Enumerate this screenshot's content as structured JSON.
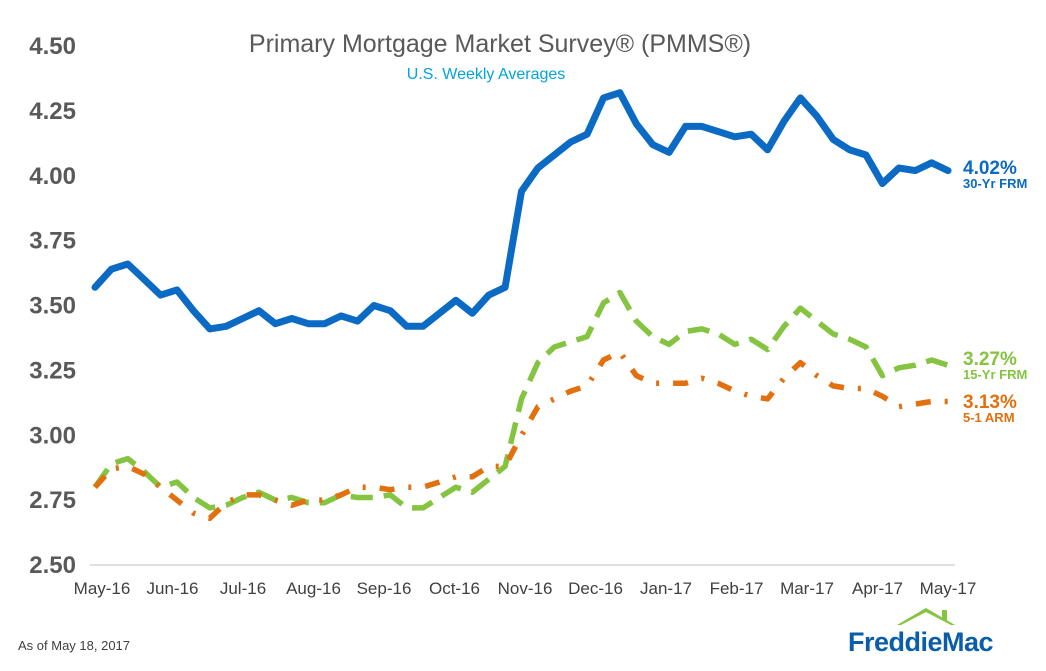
{
  "chart_data": {
    "type": "line",
    "title": "Primary Mortgage Market Survey® (PMMS®)",
    "subtitle": "U.S. Weekly Averages",
    "ylim": [
      2.5,
      4.5
    ],
    "y_ticks": [
      "4.50",
      "4.25",
      "4.00",
      "3.75",
      "3.50",
      "3.25",
      "3.00",
      "2.75",
      "2.50"
    ],
    "x_ticks": [
      "May-16",
      "Jun-16",
      "Jul-16",
      "Aug-16",
      "Sep-16",
      "Oct-16",
      "Nov-16",
      "Dec-16",
      "Jan-17",
      "Feb-17",
      "Mar-17",
      "Apr-17",
      "May-17"
    ],
    "grid": false,
    "series": [
      {
        "name": "30-Yr FRM",
        "end_label": "4.02%",
        "color": "#0a6ac4",
        "style": "solid",
        "values": [
          3.57,
          3.64,
          3.66,
          3.6,
          3.54,
          3.56,
          3.48,
          3.41,
          3.42,
          3.45,
          3.48,
          3.43,
          3.45,
          3.43,
          3.43,
          3.46,
          3.44,
          3.5,
          3.48,
          3.42,
          3.42,
          3.47,
          3.52,
          3.47,
          3.54,
          3.57,
          3.94,
          4.03,
          4.08,
          4.13,
          4.16,
          4.3,
          4.32,
          4.2,
          4.12,
          4.09,
          4.19,
          4.19,
          4.17,
          4.15,
          4.16,
          4.1,
          4.21,
          4.3,
          4.23,
          4.14,
          4.1,
          4.08,
          3.97,
          4.03,
          4.02,
          4.05,
          4.02
        ]
      },
      {
        "name": "15-Yr FRM",
        "end_label": "3.27%",
        "color": "#84c441",
        "style": "dashed",
        "values": [
          2.8,
          2.89,
          2.91,
          2.86,
          2.8,
          2.82,
          2.76,
          2.72,
          2.73,
          2.76,
          2.78,
          2.75,
          2.76,
          2.74,
          2.74,
          2.77,
          2.76,
          2.76,
          2.77,
          2.72,
          2.72,
          2.76,
          2.8,
          2.78,
          2.83,
          2.88,
          3.14,
          3.28,
          3.34,
          3.36,
          3.38,
          3.51,
          3.55,
          3.44,
          3.38,
          3.35,
          3.4,
          3.41,
          3.39,
          3.35,
          3.37,
          3.33,
          3.42,
          3.49,
          3.44,
          3.39,
          3.37,
          3.34,
          3.23,
          3.26,
          3.27,
          3.29,
          3.27
        ]
      },
      {
        "name": "5-1 ARM",
        "end_label": "3.13%",
        "color": "#e3700f",
        "style": "dash-dot",
        "values": [
          2.8,
          2.87,
          2.88,
          2.85,
          2.8,
          2.75,
          2.7,
          2.68,
          2.74,
          2.77,
          2.77,
          2.75,
          2.73,
          2.75,
          2.75,
          2.77,
          2.8,
          2.8,
          2.79,
          2.8,
          2.8,
          2.82,
          2.84,
          2.84,
          2.88,
          2.88,
          3.0,
          3.11,
          3.14,
          3.17,
          3.19,
          3.29,
          3.32,
          3.23,
          3.2,
          3.2,
          3.2,
          3.22,
          3.2,
          3.17,
          3.15,
          3.14,
          3.22,
          3.28,
          3.23,
          3.19,
          3.18,
          3.18,
          3.15,
          3.11,
          3.12,
          3.13,
          3.13
        ]
      }
    ],
    "footnote": "As of May 18, 2017"
  },
  "brand": {
    "logo_text": "FreddieMac",
    "logo_color": "#0a5ea8",
    "roof_color": "#84c441"
  }
}
